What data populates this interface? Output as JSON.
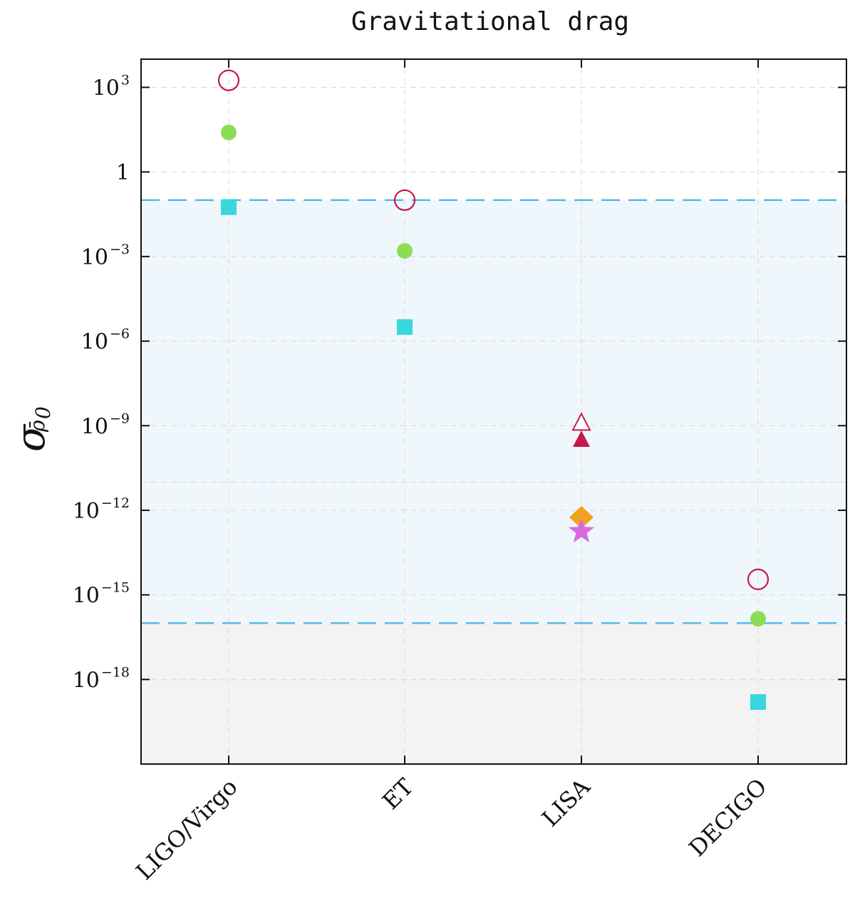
{
  "chart_data": {
    "type": "scatter",
    "title": "Gravitational drag",
    "ylabel": "σ",
    "ylabel_subscript": "ρ̄",
    "ylabel_subscript_index": "0",
    "yscale": "log",
    "ylim_exp": [
      -21.0,
      4.0
    ],
    "yticks": [
      {
        "exp": 3,
        "base": "10",
        "sup": "3"
      },
      {
        "exp": 0,
        "base": "1",
        "sup": ""
      },
      {
        "exp": -3,
        "base": "10",
        "sup": "−3"
      },
      {
        "exp": -6,
        "base": "10",
        "sup": "−6"
      },
      {
        "exp": -9,
        "base": "10",
        "sup": "−9"
      },
      {
        "exp": -12,
        "base": "10",
        "sup": "−12"
      },
      {
        "exp": -15,
        "base": "10",
        "sup": "−15"
      },
      {
        "exp": -18,
        "base": "10",
        "sup": "−18"
      }
    ],
    "categories": [
      "LIGO/Virgo",
      "ET",
      "LISA",
      "DECIGO"
    ],
    "grid": true,
    "bands": {
      "blue_band_exp": [
        -16.0,
        -1.0
      ],
      "gray_band_exp": [
        -21.0,
        -16.0
      ],
      "band_colors": {
        "blue": "#eff7fc",
        "gray": "#f3f3f3",
        "dashed_line": "#5ab8e6"
      }
    },
    "series": [
      {
        "marker": "open-circle",
        "color": "#c8174b",
        "points": [
          {
            "category": "LIGO/Virgo",
            "exp": 3.25
          },
          {
            "category": "ET",
            "exp": -1.0
          },
          {
            "category": "DECIGO",
            "exp": -14.45
          }
        ]
      },
      {
        "marker": "filled-circle",
        "color": "#8ddd52",
        "points": [
          {
            "category": "LIGO/Virgo",
            "exp": 1.4
          },
          {
            "category": "ET",
            "exp": -2.8
          },
          {
            "category": "DECIGO",
            "exp": -15.85
          }
        ]
      },
      {
        "marker": "filled-square",
        "color": "#38d7dd",
        "points": [
          {
            "category": "LIGO/Virgo",
            "exp": -1.25
          },
          {
            "category": "ET",
            "exp": -5.5
          },
          {
            "category": "DECIGO",
            "exp": -18.8
          }
        ]
      },
      {
        "marker": "open-triangle",
        "color": "#c8174b",
        "points": [
          {
            "category": "LISA",
            "exp": -8.9
          }
        ]
      },
      {
        "marker": "filled-triangle",
        "color": "#c8174b",
        "points": [
          {
            "category": "LISA",
            "exp": -9.5
          }
        ]
      },
      {
        "marker": "filled-diamond",
        "color": "#f0a21c",
        "points": [
          {
            "category": "LISA",
            "exp": -12.25
          }
        ]
      },
      {
        "marker": "filled-star",
        "color": "#d868e0",
        "points": [
          {
            "category": "LISA",
            "exp": -12.75
          }
        ]
      }
    ]
  }
}
